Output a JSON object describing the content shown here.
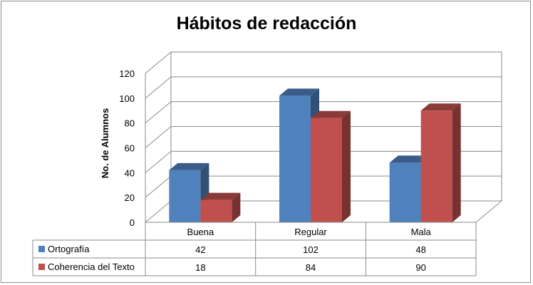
{
  "chart_data": {
    "type": "bar",
    "title": "Hábitos de redacción",
    "xlabel": "",
    "ylabel": "No. de Alumnos",
    "ylim": [
      0,
      120
    ],
    "yticks": [
      0,
      20,
      40,
      60,
      80,
      100,
      120
    ],
    "categories": [
      "Buena",
      "Regular",
      "Mala"
    ],
    "series": [
      {
        "name": "Ortografía",
        "values": [
          42,
          102,
          48
        ],
        "color": "#4f81bd"
      },
      {
        "name": "Coherencia del Texto",
        "values": [
          18,
          84,
          90
        ],
        "color": "#c0504d"
      }
    ],
    "grid": true,
    "three_d": true,
    "legend": "data-table"
  }
}
